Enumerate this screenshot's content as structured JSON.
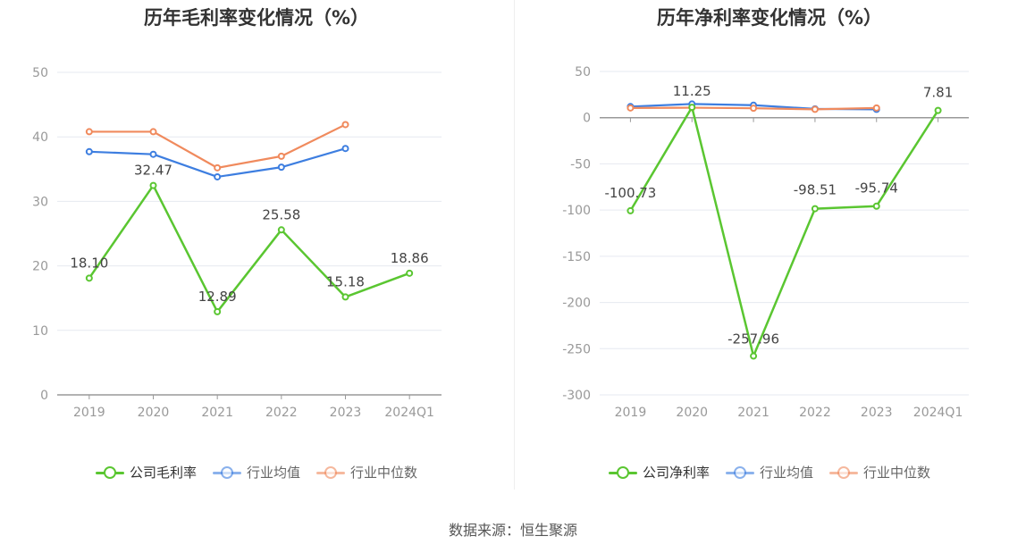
{
  "chart_data": [
    {
      "type": "line",
      "title": "历年毛利率变化情况（%）",
      "categories": [
        "2019",
        "2020",
        "2021",
        "2022",
        "2023",
        "2024Q1"
      ],
      "ylim": [
        0,
        50
      ],
      "yticks": [
        "50",
        "40",
        "30",
        "20",
        "10",
        "0"
      ],
      "ytick_values": [
        50,
        40,
        30,
        20,
        10,
        0
      ],
      "grid": true,
      "legend_position": "bottom",
      "series": [
        {
          "name": "公司毛利率",
          "color": "#5ac631",
          "values": [
            18.1,
            32.47,
            12.89,
            25.58,
            15.18,
            18.86
          ],
          "labels": [
            "18.10",
            "32.47",
            "12.89",
            "25.58",
            "15.18",
            "18.86"
          ]
        },
        {
          "name": "行业均值",
          "color": "#3d7ee0",
          "values": [
            37.7,
            37.3,
            33.8,
            35.3,
            38.2,
            null
          ]
        },
        {
          "name": "行业中位数",
          "color": "#f08a5d",
          "values": [
            40.8,
            40.8,
            35.2,
            37.0,
            41.9,
            null
          ]
        }
      ]
    },
    {
      "type": "line",
      "title": "历年净利率变化情况（%）",
      "categories": [
        "2019",
        "2020",
        "2021",
        "2022",
        "2023",
        "2024Q1"
      ],
      "ylim": [
        -300,
        50
      ],
      "yticks": [
        "50",
        "0",
        "-50",
        "-100",
        "-150",
        "-200",
        "-250",
        "-300"
      ],
      "ytick_values": [
        50,
        0,
        -50,
        -100,
        -150,
        -200,
        -250,
        -300
      ],
      "grid": true,
      "legend_position": "bottom",
      "series": [
        {
          "name": "公司净利率",
          "color": "#5ac631",
          "values": [
            -100.73,
            11.25,
            -257.96,
            -98.51,
            -95.74,
            7.81
          ],
          "labels": [
            "-100.73",
            "11.25",
            "-257.96",
            "-98.51",
            "-95.74",
            "7.81"
          ]
        },
        {
          "name": "行业均值",
          "color": "#3d7ee0",
          "values": [
            12.0,
            14.8,
            13.5,
            9.5,
            9.0,
            null
          ]
        },
        {
          "name": "行业中位数",
          "color": "#f08a5d",
          "values": [
            10.5,
            10.8,
            10.2,
            9.0,
            10.5,
            null
          ]
        }
      ]
    }
  ],
  "source_text": "数据来源：恒生聚源"
}
